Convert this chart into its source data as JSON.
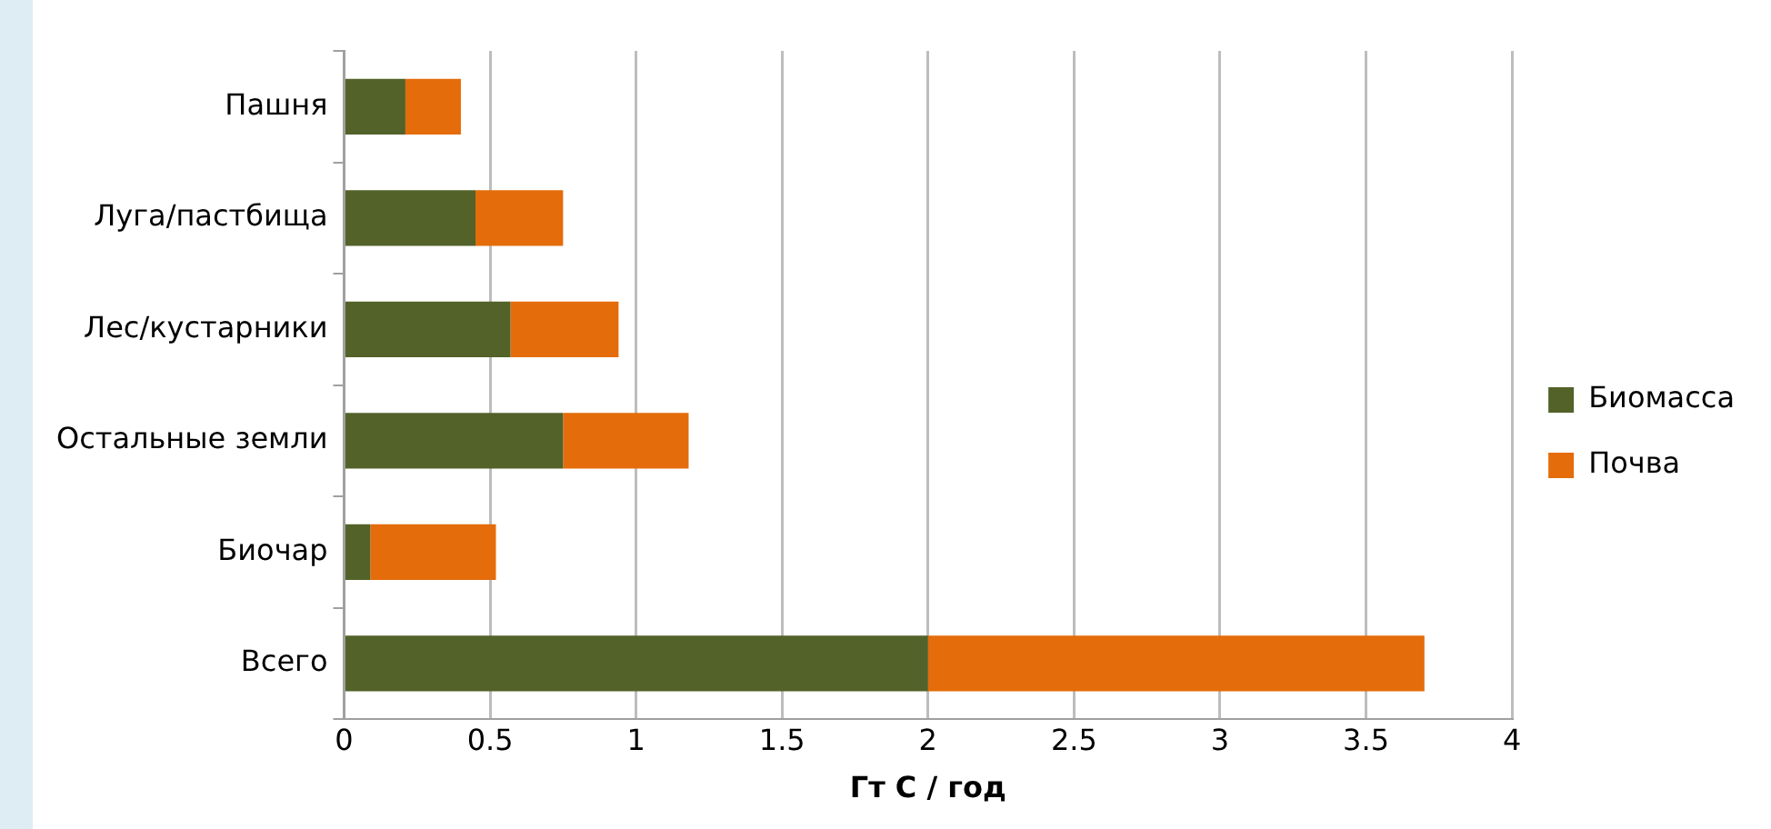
{
  "chart_data": {
    "type": "bar",
    "orientation": "horizontal",
    "stacked": true,
    "xlabel": "Гт C / год",
    "categories": [
      "Пашня",
      "Луга/пастбища",
      "Лес/кустарники",
      "Остальные земли",
      "Биочар",
      "Всего"
    ],
    "series": [
      {
        "name": "Биомасса",
        "color": "#536229",
        "values": [
          0.21,
          0.45,
          0.57,
          0.75,
          0.09,
          2.0
        ]
      },
      {
        "name": "Почва",
        "color": "#e46c0a",
        "values": [
          0.19,
          0.3,
          0.37,
          0.43,
          0.43,
          1.7
        ]
      }
    ],
    "xlim": [
      0,
      4
    ],
    "xticks": [
      0,
      0.5,
      1,
      1.5,
      2,
      2.5,
      3,
      3.5,
      4
    ],
    "grid": "x",
    "legend": "right"
  }
}
